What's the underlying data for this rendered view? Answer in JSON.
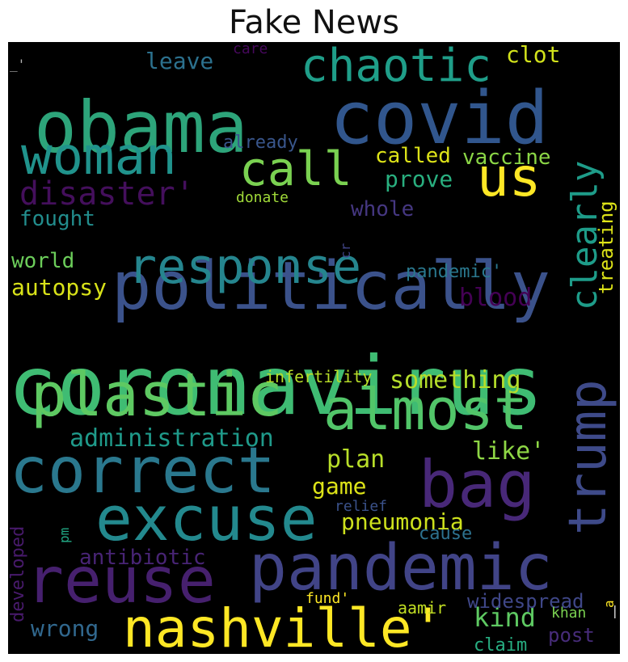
{
  "chart_data": {
    "type": "wordcloud",
    "title": "Fake News",
    "words": [
      {
        "text": "coronavirus",
        "weight": 100,
        "color": "#3fbc73",
        "rotated": false
      },
      {
        "text": "politically",
        "weight": 90,
        "color": "#3b528b",
        "rotated": false
      },
      {
        "text": "obama",
        "weight": 88,
        "color": "#2da47a",
        "rotated": false
      },
      {
        "text": "covid",
        "weight": 88,
        "color": "#31568d",
        "rotated": false
      },
      {
        "text": "pandemic",
        "weight": 82,
        "color": "#414487",
        "rotated": false
      },
      {
        "text": "reuse",
        "weight": 80,
        "color": "#46206e",
        "rotated": false
      },
      {
        "text": "excuse",
        "weight": 78,
        "color": "#23898e",
        "rotated": false
      },
      {
        "text": "correct",
        "weight": 76,
        "color": "#2a788e",
        "rotated": false
      },
      {
        "text": "plastic",
        "weight": 76,
        "color": "#5ec962",
        "rotated": false
      },
      {
        "text": "almost",
        "weight": 74,
        "color": "#52c569",
        "rotated": false
      },
      {
        "text": "bag",
        "weight": 72,
        "color": "#482878",
        "rotated": false
      },
      {
        "text": "nashville'",
        "weight": 68,
        "color": "#fde725",
        "rotated": false
      },
      {
        "text": "trump",
        "weight": 66,
        "color": "#3e4a89",
        "rotated": true
      },
      {
        "text": "woman",
        "weight": 62,
        "color": "#20938c",
        "rotated": false
      },
      {
        "text": "response",
        "weight": 62,
        "color": "#25858e",
        "rotated": false
      },
      {
        "text": "us",
        "weight": 60,
        "color": "#fde725",
        "rotated": false
      },
      {
        "text": "call",
        "weight": 56,
        "color": "#7ad151",
        "rotated": false
      },
      {
        "text": "chaotic",
        "weight": 52,
        "color": "#1f9e89",
        "rotated": false
      },
      {
        "text": "clearly",
        "weight": 44,
        "color": "#1e9c89",
        "rotated": true
      },
      {
        "text": "disaster'",
        "weight": 40,
        "color": "#440f5c",
        "rotated": false
      },
      {
        "text": "something",
        "weight": 30,
        "color": "#b5de2b",
        "rotated": false
      },
      {
        "text": "administration",
        "weight": 30,
        "color": "#1f9a8a",
        "rotated": false
      },
      {
        "text": "kind",
        "weight": 30,
        "color": "#5ec962",
        "rotated": false
      },
      {
        "text": "autopsy",
        "weight": 28,
        "color": "#d8e219",
        "rotated": false
      },
      {
        "text": "blood",
        "weight": 28,
        "color": "#440154",
        "rotated": false
      },
      {
        "text": "plan",
        "weight": 28,
        "color": "#b8de29",
        "rotated": false
      },
      {
        "text": "like'",
        "weight": 28,
        "color": "#8ed645",
        "rotated": false
      },
      {
        "text": "prove",
        "weight": 28,
        "color": "#29af7f",
        "rotated": false
      },
      {
        "text": "clot",
        "weight": 28,
        "color": "#d2e21b",
        "rotated": false
      },
      {
        "text": "leave",
        "weight": 28,
        "color": "#2c718e",
        "rotated": false
      },
      {
        "text": "wrong",
        "weight": 28,
        "color": "#31688e",
        "rotated": false
      },
      {
        "text": "game",
        "weight": 28,
        "color": "#dde318",
        "rotated": false
      },
      {
        "text": "pneumonia",
        "weight": 28,
        "color": "#cde11d",
        "rotated": false
      },
      {
        "text": "antibiotic",
        "weight": 26,
        "color": "#482475",
        "rotated": false
      },
      {
        "text": "called",
        "weight": 26,
        "color": "#dde318",
        "rotated": false
      },
      {
        "text": "vaccine",
        "weight": 26,
        "color": "#8bd646",
        "rotated": false
      },
      {
        "text": "fought",
        "weight": 26,
        "color": "#228d8d",
        "rotated": false
      },
      {
        "text": "world",
        "weight": 26,
        "color": "#6ccd5a",
        "rotated": false
      },
      {
        "text": "whole",
        "weight": 26,
        "color": "#453781",
        "rotated": false
      },
      {
        "text": "treating",
        "weight": 24,
        "color": "#dde318",
        "rotated": true
      },
      {
        "text": "widespread",
        "weight": 24,
        "color": "#3f4788",
        "rotated": false
      },
      {
        "text": "post",
        "weight": 24,
        "color": "#472c7a",
        "rotated": false
      },
      {
        "text": "claim",
        "weight": 24,
        "color": "#27ad81",
        "rotated": false
      },
      {
        "text": "already",
        "weight": 22,
        "color": "#39568c",
        "rotated": false
      },
      {
        "text": "pandemic'",
        "weight": 22,
        "color": "#2a788e",
        "rotated": false
      },
      {
        "text": "infertility",
        "weight": 22,
        "color": "#b8de29",
        "rotated": false
      },
      {
        "text": "cause",
        "weight": 22,
        "color": "#2d718e",
        "rotated": false
      },
      {
        "text": "developed",
        "weight": 22,
        "color": "#481a6c",
        "rotated": true
      },
      {
        "text": "relief",
        "weight": 20,
        "color": "#3b528b",
        "rotated": false
      },
      {
        "text": "fund'",
        "weight": 20,
        "color": "#fde725",
        "rotated": false
      },
      {
        "text": "aamir",
        "weight": 20,
        "color": "#c2df23",
        "rotated": false
      },
      {
        "text": "donate",
        "weight": 20,
        "color": "#a0da39",
        "rotated": false
      },
      {
        "text": "care",
        "weight": 18,
        "color": "#46085c",
        "rotated": false
      },
      {
        "text": "khan",
        "weight": 18,
        "color": "#7ad151",
        "rotated": false
      },
      {
        "text": "pm",
        "weight": 16,
        "color": "#22a884",
        "rotated": true
      },
      {
        "text": "cr",
        "weight": 16,
        "color": "#414487",
        "rotated": true
      },
      {
        "text": "a",
        "weight": 16,
        "color": "#fde725",
        "rotated": true
      },
      {
        "text": "_'",
        "weight": 16,
        "color": "#b5b5b5",
        "rotated": false
      },
      {
        "text": "|",
        "weight": 16,
        "color": "#e0e0e0",
        "rotated": false
      }
    ]
  }
}
